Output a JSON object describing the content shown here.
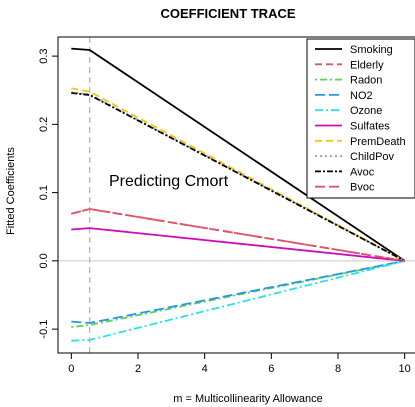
{
  "chart_data": {
    "type": "line",
    "title": "COEFFICIENT TRACE",
    "xlabel": "m = Multicollinearity Allowance",
    "ylabel": "Fitted Coefficients",
    "xlim": [
      -0.4,
      10.4
    ],
    "ylim": [
      -0.135,
      0.328
    ],
    "xticks": [
      0,
      2,
      4,
      6,
      8,
      10
    ],
    "yticks": [
      -0.1,
      0.0,
      0.1,
      0.2,
      0.3
    ],
    "grid": false,
    "legend_position": "top-right",
    "annotation": "Predicting Cmort",
    "reference_lines": {
      "horizontal": 0.0,
      "vertical": 0.55
    },
    "series": [
      {
        "name": "Smoking",
        "color": "#000000",
        "dash": "",
        "x": [
          0,
          0.55,
          10
        ],
        "y": [
          0.311,
          0.309,
          0.0
        ]
      },
      {
        "name": "Elderly",
        "color": "#DF536B",
        "dash": "7,4",
        "x": [
          0,
          0.55,
          10
        ],
        "y": [
          0.069,
          0.076,
          0.0
        ]
      },
      {
        "name": "Radon",
        "color": "#61D04F",
        "dash": "2,3,7,3",
        "x": [
          0,
          0.55,
          10
        ],
        "y": [
          -0.097,
          -0.094,
          0.0
        ]
      },
      {
        "name": "NO2",
        "color": "#2297E6",
        "dash": "10,4",
        "x": [
          0,
          0.55,
          10
        ],
        "y": [
          -0.089,
          -0.091,
          0.0
        ]
      },
      {
        "name": "Ozone",
        "color": "#28E2E5",
        "dash": "8,3,2,3",
        "x": [
          0,
          0.55,
          10
        ],
        "y": [
          -0.117,
          -0.116,
          0.0
        ]
      },
      {
        "name": "Sulfates",
        "color": "#CD0BBC",
        "dash": "",
        "x": [
          0,
          0.55,
          10
        ],
        "y": [
          0.046,
          0.048,
          0.0
        ]
      },
      {
        "name": "PremDeath",
        "color": "#F5C710",
        "dash": "7,4",
        "x": [
          0,
          0.55,
          10
        ],
        "y": [
          0.253,
          0.248,
          0.0
        ]
      },
      {
        "name": "ChildPov",
        "color": "#9E9E9E",
        "dash": "2,3",
        "x": [
          0,
          0.55,
          10
        ],
        "y": [
          0.247,
          0.244,
          0.0
        ]
      },
      {
        "name": "Avoc",
        "color": "#000000",
        "dash": "6,2,2,2",
        "x": [
          0,
          0.55,
          10
        ],
        "y": [
          0.246,
          0.243,
          0.0
        ]
      },
      {
        "name": "Bvoc",
        "color": "#DF536B",
        "dash": "10,4",
        "x": [
          0,
          0.55,
          10
        ],
        "y": [
          0.069,
          0.076,
          0.0
        ]
      }
    ]
  }
}
